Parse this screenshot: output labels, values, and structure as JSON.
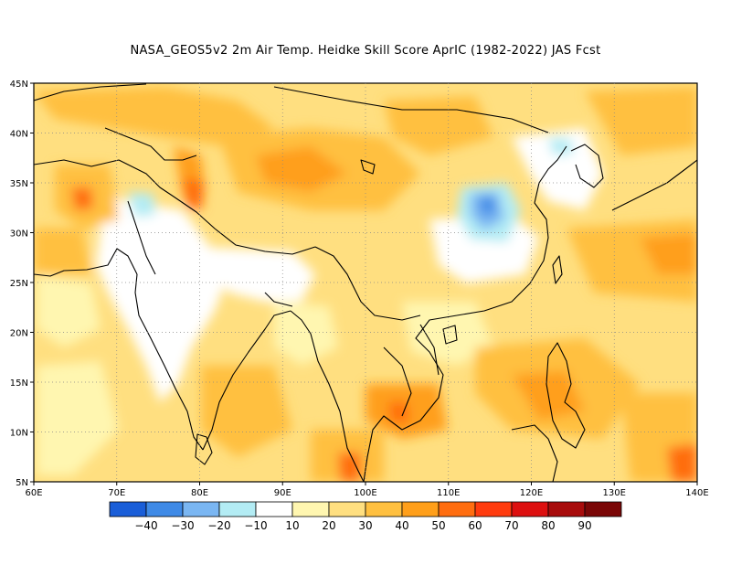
{
  "title": "NASA_GEOS5v2  2m Air Temp. Heidke Skill Score AprIC (1982-2022) JAS Fcst",
  "map": {
    "lon_range": [
      60,
      140
    ],
    "lat_range": [
      5,
      45
    ],
    "lon_ticks": [
      "60E",
      "70E",
      "80E",
      "90E",
      "100E",
      "110E",
      "120E",
      "130E",
      "140E"
    ],
    "lat_ticks": [
      "5N",
      "10N",
      "15N",
      "20N",
      "25N",
      "30N",
      "35N",
      "40N",
      "45N"
    ],
    "gridlines": "dotted"
  },
  "colorbar": {
    "colors": [
      "#1a5ed8",
      "#3f8ae6",
      "#7ab6f2",
      "#b3ecf4",
      "#ffffff",
      "#fff6b0",
      "#ffdf80",
      "#ffc040",
      "#ff9f1a",
      "#ff6d10",
      "#ff3b0e",
      "#dd1010",
      "#a80c0c",
      "#7a0606"
    ],
    "labels": [
      "-40",
      "-30",
      "-20",
      "-10",
      "10",
      "20",
      "30",
      "40",
      "50",
      "60",
      "70",
      "80",
      "90"
    ]
  }
}
